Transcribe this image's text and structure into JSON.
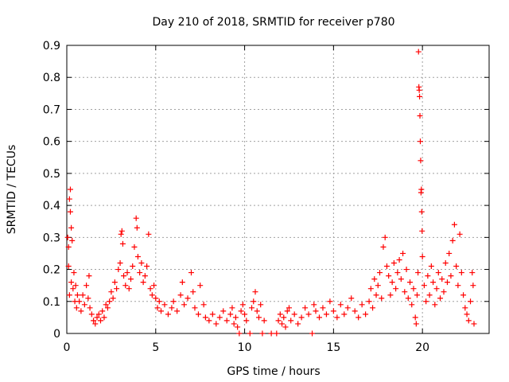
{
  "chart_data": {
    "type": "scatter",
    "title": "Day 210 of 2018, SRMTID for receiver p780",
    "xlabel": "GPS time / hours",
    "ylabel": "SRMTID / TECUs",
    "xlim": [
      0,
      23.75
    ],
    "ylim": [
      0,
      0.9
    ],
    "xticks": [
      0,
      5,
      10,
      15,
      20
    ],
    "yticks": [
      0,
      0.1,
      0.2,
      0.3,
      0.4,
      0.5,
      0.6,
      0.7,
      0.8,
      0.9
    ],
    "xtick_labels": [
      "0",
      "5",
      "10",
      "15",
      "20"
    ],
    "ytick_labels": [
      "0",
      "0.1",
      "0.2",
      "0.3",
      "0.4",
      "0.5",
      "0.6",
      "0.7",
      "0.8",
      "0.9"
    ],
    "grid": true,
    "marker": "plus",
    "color": "#ff0000",
    "series": [
      {
        "name": "SRMTID",
        "points": [
          [
            0.05,
            0.3
          ],
          [
            0.1,
            0.27
          ],
          [
            0.1,
            0.21
          ],
          [
            0.15,
            0.12
          ],
          [
            0.15,
            0.42
          ],
          [
            0.2,
            0.45
          ],
          [
            0.2,
            0.38
          ],
          [
            0.25,
            0.33
          ],
          [
            0.25,
            0.16
          ],
          [
            0.3,
            0.29
          ],
          [
            0.35,
            0.14
          ],
          [
            0.4,
            0.19
          ],
          [
            0.45,
            0.1
          ],
          [
            0.5,
            0.15
          ],
          [
            0.55,
            0.08
          ],
          [
            0.6,
            0.12
          ],
          [
            0.7,
            0.1
          ],
          [
            0.8,
            0.07
          ],
          [
            0.9,
            0.12
          ],
          [
            1.0,
            0.09
          ],
          [
            1.1,
            0.15
          ],
          [
            1.2,
            0.11
          ],
          [
            1.25,
            0.18
          ],
          [
            1.3,
            0.08
          ],
          [
            1.4,
            0.06
          ],
          [
            1.5,
            0.04
          ],
          [
            1.6,
            0.03
          ],
          [
            1.7,
            0.05
          ],
          [
            1.8,
            0.06
          ],
          [
            1.9,
            0.04
          ],
          [
            2.0,
            0.07
          ],
          [
            2.1,
            0.05
          ],
          [
            2.2,
            0.09
          ],
          [
            2.3,
            0.08
          ],
          [
            2.4,
            0.1
          ],
          [
            2.5,
            0.13
          ],
          [
            2.6,
            0.11
          ],
          [
            2.7,
            0.16
          ],
          [
            2.8,
            0.14
          ],
          [
            2.9,
            0.2
          ],
          [
            3.0,
            0.22
          ],
          [
            3.05,
            0.31
          ],
          [
            3.1,
            0.32
          ],
          [
            3.15,
            0.28
          ],
          [
            3.2,
            0.18
          ],
          [
            3.3,
            0.15
          ],
          [
            3.4,
            0.19
          ],
          [
            3.5,
            0.14
          ],
          [
            3.6,
            0.17
          ],
          [
            3.7,
            0.21
          ],
          [
            3.8,
            0.27
          ],
          [
            3.9,
            0.36
          ],
          [
            3.95,
            0.33
          ],
          [
            4.0,
            0.24
          ],
          [
            4.1,
            0.19
          ],
          [
            4.2,
            0.22
          ],
          [
            4.3,
            0.16
          ],
          [
            4.4,
            0.18
          ],
          [
            4.5,
            0.21
          ],
          [
            4.6,
            0.31
          ],
          [
            4.7,
            0.14
          ],
          [
            4.8,
            0.12
          ],
          [
            4.9,
            0.15
          ],
          [
            5.0,
            0.11
          ],
          [
            5.1,
            0.08
          ],
          [
            5.2,
            0.1
          ],
          [
            5.3,
            0.07
          ],
          [
            5.5,
            0.09
          ],
          [
            5.7,
            0.06
          ],
          [
            5.9,
            0.08
          ],
          [
            6.0,
            0.1
          ],
          [
            6.2,
            0.07
          ],
          [
            6.4,
            0.12
          ],
          [
            6.5,
            0.16
          ],
          [
            6.6,
            0.09
          ],
          [
            6.8,
            0.11
          ],
          [
            7.0,
            0.19
          ],
          [
            7.1,
            0.13
          ],
          [
            7.2,
            0.08
          ],
          [
            7.4,
            0.06
          ],
          [
            7.5,
            0.15
          ],
          [
            7.7,
            0.09
          ],
          [
            7.8,
            0.05
          ],
          [
            8.0,
            0.04
          ],
          [
            8.2,
            0.06
          ],
          [
            8.4,
            0.03
          ],
          [
            8.6,
            0.05
          ],
          [
            8.8,
            0.07
          ],
          [
            9.0,
            0.04
          ],
          [
            9.2,
            0.06
          ],
          [
            9.3,
            0.08
          ],
          [
            9.4,
            0.03
          ],
          [
            9.5,
            0.05
          ],
          [
            9.6,
            0.02
          ],
          [
            9.7,
            0.0
          ],
          [
            9.8,
            0.07
          ],
          [
            9.9,
            0.09
          ],
          [
            10.0,
            0.06
          ],
          [
            10.1,
            0.04
          ],
          [
            10.3,
            0.0
          ],
          [
            10.4,
            0.08
          ],
          [
            10.5,
            0.1
          ],
          [
            10.6,
            0.13
          ],
          [
            10.7,
            0.07
          ],
          [
            10.8,
            0.05
          ],
          [
            10.9,
            0.09
          ],
          [
            11.0,
            0.0
          ],
          [
            11.1,
            0.04
          ],
          [
            11.5,
            0.0
          ],
          [
            11.8,
            0.0
          ],
          [
            11.9,
            0.04
          ],
          [
            12.0,
            0.06
          ],
          [
            12.1,
            0.03
          ],
          [
            12.2,
            0.05
          ],
          [
            12.3,
            0.02
          ],
          [
            12.4,
            0.07
          ],
          [
            12.5,
            0.08
          ],
          [
            12.6,
            0.04
          ],
          [
            12.8,
            0.06
          ],
          [
            13.0,
            0.03
          ],
          [
            13.2,
            0.05
          ],
          [
            13.4,
            0.08
          ],
          [
            13.6,
            0.06
          ],
          [
            13.8,
            0.0
          ],
          [
            13.9,
            0.09
          ],
          [
            14.0,
            0.07
          ],
          [
            14.2,
            0.05
          ],
          [
            14.4,
            0.08
          ],
          [
            14.6,
            0.06
          ],
          [
            14.8,
            0.1
          ],
          [
            15.0,
            0.07
          ],
          [
            15.2,
            0.05
          ],
          [
            15.4,
            0.09
          ],
          [
            15.6,
            0.06
          ],
          [
            15.8,
            0.08
          ],
          [
            16.0,
            0.11
          ],
          [
            16.2,
            0.07
          ],
          [
            16.4,
            0.05
          ],
          [
            16.6,
            0.09
          ],
          [
            16.8,
            0.06
          ],
          [
            17.0,
            0.1
          ],
          [
            17.1,
            0.14
          ],
          [
            17.2,
            0.08
          ],
          [
            17.3,
            0.17
          ],
          [
            17.4,
            0.12
          ],
          [
            17.5,
            0.15
          ],
          [
            17.6,
            0.19
          ],
          [
            17.7,
            0.11
          ],
          [
            17.8,
            0.27
          ],
          [
            17.9,
            0.3
          ],
          [
            18.0,
            0.21
          ],
          [
            18.1,
            0.18
          ],
          [
            18.2,
            0.12
          ],
          [
            18.3,
            0.16
          ],
          [
            18.4,
            0.22
          ],
          [
            18.5,
            0.14
          ],
          [
            18.6,
            0.19
          ],
          [
            18.7,
            0.23
          ],
          [
            18.8,
            0.17
          ],
          [
            18.9,
            0.25
          ],
          [
            19.0,
            0.13
          ],
          [
            19.1,
            0.2
          ],
          [
            19.2,
            0.11
          ],
          [
            19.3,
            0.16
          ],
          [
            19.4,
            0.09
          ],
          [
            19.5,
            0.14
          ],
          [
            19.6,
            0.05
          ],
          [
            19.65,
            0.03
          ],
          [
            19.7,
            0.12
          ],
          [
            19.75,
            0.19
          ],
          [
            19.78,
            0.88
          ],
          [
            19.8,
            0.77
          ],
          [
            19.82,
            0.76
          ],
          [
            19.84,
            0.74
          ],
          [
            19.86,
            0.68
          ],
          [
            19.88,
            0.6
          ],
          [
            19.9,
            0.54
          ],
          [
            19.92,
            0.44
          ],
          [
            19.94,
            0.45
          ],
          [
            19.96,
            0.38
          ],
          [
            19.98,
            0.32
          ],
          [
            20.0,
            0.24
          ],
          [
            20.1,
            0.15
          ],
          [
            20.2,
            0.1
          ],
          [
            20.3,
            0.18
          ],
          [
            20.4,
            0.12
          ],
          [
            20.5,
            0.21
          ],
          [
            20.6,
            0.16
          ],
          [
            20.7,
            0.09
          ],
          [
            20.8,
            0.14
          ],
          [
            20.9,
            0.19
          ],
          [
            21.0,
            0.11
          ],
          [
            21.1,
            0.17
          ],
          [
            21.2,
            0.13
          ],
          [
            21.3,
            0.22
          ],
          [
            21.4,
            0.16
          ],
          [
            21.5,
            0.25
          ],
          [
            21.6,
            0.18
          ],
          [
            21.7,
            0.29
          ],
          [
            21.8,
            0.34
          ],
          [
            21.9,
            0.21
          ],
          [
            22.0,
            0.15
          ],
          [
            22.1,
            0.31
          ],
          [
            22.2,
            0.19
          ],
          [
            22.3,
            0.12
          ],
          [
            22.4,
            0.08
          ],
          [
            22.5,
            0.06
          ],
          [
            22.6,
            0.04
          ],
          [
            22.7,
            0.1
          ],
          [
            22.8,
            0.19
          ],
          [
            22.85,
            0.15
          ],
          [
            22.9,
            0.03
          ]
        ]
      }
    ]
  }
}
